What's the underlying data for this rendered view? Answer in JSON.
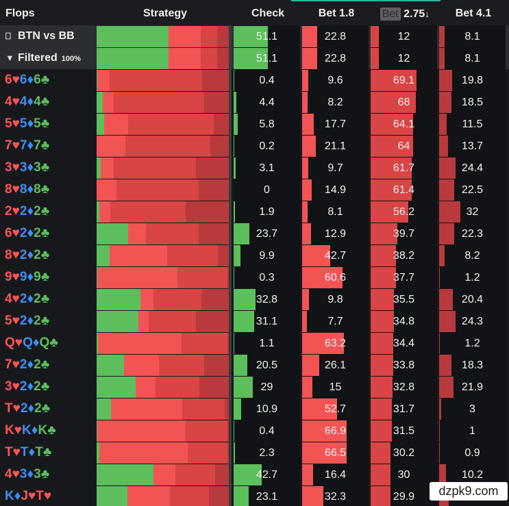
{
  "header": {
    "flops": "Flops",
    "strategy": "Strategy",
    "check": "Check",
    "bet18": "Bet 1.8",
    "bet275_prefix": "Bet",
    "bet275_suffix": "2.75",
    "bet275_sort_icon": "↓",
    "bet41": "Bet 4.1"
  },
  "colors": {
    "check": "#5cbf5c",
    "bet_small": "#f25454",
    "bet_mid": "#d94444",
    "bet_large": "#b83a3d",
    "bet_xl": "#a03337",
    "suit_red": "#ff5555",
    "suit_blue": "#3d8ef5",
    "suit_green": "#5cc05c"
  },
  "summary": [
    {
      "icon": "bookmark-icon",
      "icon_glyph": "⎕",
      "label": "BTN vs BB",
      "badge": "",
      "check": "51.1",
      "bet18": "22.8",
      "bet275": "12",
      "bet41": "8.1",
      "check_n": 51.1,
      "bet18_n": 22.8,
      "bet275_n": 12,
      "bet41_n": 8.1
    },
    {
      "icon": "filter-icon",
      "icon_glyph": "▼",
      "label": "Filtered",
      "badge": "100%",
      "check": "51.1",
      "bet18": "22.8",
      "bet275": "12",
      "bet41": "8.1",
      "check_n": 51.1,
      "bet18_n": 22.8,
      "bet275_n": 12,
      "bet41_n": 8.1
    }
  ],
  "rows": [
    {
      "cards": [
        [
          "6",
          "♥",
          "red"
        ],
        [
          "6",
          "♦",
          "blue"
        ],
        [
          "6",
          "♣",
          "green"
        ]
      ],
      "check": "0.4",
      "bet18": "9.6",
      "bet275": "69.1",
      "bet41": "19.8",
      "check_n": 0.4,
      "bet18_n": 9.6,
      "bet275_n": 69.1,
      "bet41_n": 19.8
    },
    {
      "cards": [
        [
          "4",
          "♥",
          "red"
        ],
        [
          "4",
          "♦",
          "blue"
        ],
        [
          "4",
          "♣",
          "green"
        ]
      ],
      "check": "4.4",
      "bet18": "8.2",
      "bet275": "68",
      "bet41": "18.5",
      "check_n": 4.4,
      "bet18_n": 8.2,
      "bet275_n": 68,
      "bet41_n": 18.5
    },
    {
      "cards": [
        [
          "5",
          "♥",
          "red"
        ],
        [
          "5",
          "♦",
          "blue"
        ],
        [
          "5",
          "♣",
          "green"
        ]
      ],
      "check": "5.8",
      "bet18": "17.7",
      "bet275": "64.1",
      "bet41": "11.5",
      "check_n": 5.8,
      "bet18_n": 17.7,
      "bet275_n": 64.1,
      "bet41_n": 11.5
    },
    {
      "cards": [
        [
          "7",
          "♥",
          "red"
        ],
        [
          "7",
          "♦",
          "blue"
        ],
        [
          "7",
          "♣",
          "green"
        ]
      ],
      "check": "0.2",
      "bet18": "21.1",
      "bet275": "64",
      "bet41": "13.7",
      "check_n": 0.2,
      "bet18_n": 21.1,
      "bet275_n": 64,
      "bet41_n": 13.7
    },
    {
      "cards": [
        [
          "3",
          "♥",
          "red"
        ],
        [
          "3",
          "♦",
          "blue"
        ],
        [
          "3",
          "♣",
          "green"
        ]
      ],
      "check": "3.1",
      "bet18": "9.7",
      "bet275": "61.7",
      "bet41": "24.4",
      "check_n": 3.1,
      "bet18_n": 9.7,
      "bet275_n": 61.7,
      "bet41_n": 24.4
    },
    {
      "cards": [
        [
          "8",
          "♥",
          "red"
        ],
        [
          "8",
          "♦",
          "blue"
        ],
        [
          "8",
          "♣",
          "green"
        ]
      ],
      "check": "0",
      "bet18": "14.9",
      "bet275": "61.4",
      "bet41": "22.5",
      "check_n": 0,
      "bet18_n": 14.9,
      "bet275_n": 61.4,
      "bet41_n": 22.5
    },
    {
      "cards": [
        [
          "2",
          "♥",
          "red"
        ],
        [
          "2",
          "♦",
          "blue"
        ],
        [
          "2",
          "♣",
          "green"
        ]
      ],
      "check": "1.9",
      "bet18": "8.1",
      "bet275": "56.2",
      "bet41": "32",
      "check_n": 1.9,
      "bet18_n": 8.1,
      "bet275_n": 56.2,
      "bet41_n": 32
    },
    {
      "cards": [
        [
          "6",
          "♥",
          "red"
        ],
        [
          "2",
          "♦",
          "blue"
        ],
        [
          "2",
          "♣",
          "green"
        ]
      ],
      "check": "23.7",
      "bet18": "12.9",
      "bet275": "39.7",
      "bet41": "22.3",
      "check_n": 23.7,
      "bet18_n": 12.9,
      "bet275_n": 39.7,
      "bet41_n": 22.3
    },
    {
      "cards": [
        [
          "8",
          "♥",
          "red"
        ],
        [
          "2",
          "♦",
          "blue"
        ],
        [
          "2",
          "♣",
          "green"
        ]
      ],
      "check": "9.9",
      "bet18": "42.7",
      "bet275": "38.2",
      "bet41": "8.2",
      "check_n": 9.9,
      "bet18_n": 42.7,
      "bet275_n": 38.2,
      "bet41_n": 8.2
    },
    {
      "cards": [
        [
          "9",
          "♥",
          "red"
        ],
        [
          "9",
          "♦",
          "blue"
        ],
        [
          "9",
          "♣",
          "green"
        ]
      ],
      "check": "0.3",
      "bet18": "60.6",
      "bet275": "37.7",
      "bet41": "1.2",
      "check_n": 0.3,
      "bet18_n": 60.6,
      "bet275_n": 37.7,
      "bet41_n": 1.2
    },
    {
      "cards": [
        [
          "4",
          "♥",
          "red"
        ],
        [
          "2",
          "♦",
          "blue"
        ],
        [
          "2",
          "♣",
          "green"
        ]
      ],
      "check": "32.8",
      "bet18": "9.8",
      "bet275": "35.5",
      "bet41": "20.4",
      "check_n": 32.8,
      "bet18_n": 9.8,
      "bet275_n": 35.5,
      "bet41_n": 20.4
    },
    {
      "cards": [
        [
          "5",
          "♥",
          "red"
        ],
        [
          "2",
          "♦",
          "blue"
        ],
        [
          "2",
          "♣",
          "green"
        ]
      ],
      "check": "31.1",
      "bet18": "7.7",
      "bet275": "34.8",
      "bet41": "24.3",
      "check_n": 31.1,
      "bet18_n": 7.7,
      "bet275_n": 34.8,
      "bet41_n": 24.3
    },
    {
      "cards": [
        [
          "Q",
          "♥",
          "red"
        ],
        [
          "Q",
          "♦",
          "blue"
        ],
        [
          "Q",
          "♣",
          "green"
        ]
      ],
      "check": "1.1",
      "bet18": "63.2",
      "bet275": "34.4",
      "bet41": "1.2",
      "check_n": 1.1,
      "bet18_n": 63.2,
      "bet275_n": 34.4,
      "bet41_n": 1.2
    },
    {
      "cards": [
        [
          "7",
          "♥",
          "red"
        ],
        [
          "2",
          "♦",
          "blue"
        ],
        [
          "2",
          "♣",
          "green"
        ]
      ],
      "check": "20.5",
      "bet18": "26.1",
      "bet275": "33.8",
      "bet41": "18.3",
      "check_n": 20.5,
      "bet18_n": 26.1,
      "bet275_n": 33.8,
      "bet41_n": 18.3
    },
    {
      "cards": [
        [
          "3",
          "♥",
          "red"
        ],
        [
          "2",
          "♦",
          "blue"
        ],
        [
          "2",
          "♣",
          "green"
        ]
      ],
      "check": "29",
      "bet18": "15",
      "bet275": "32.8",
      "bet41": "21.9",
      "check_n": 29,
      "bet18_n": 15,
      "bet275_n": 32.8,
      "bet41_n": 21.9
    },
    {
      "cards": [
        [
          "T",
          "♥",
          "red"
        ],
        [
          "2",
          "♦",
          "blue"
        ],
        [
          "2",
          "♣",
          "green"
        ]
      ],
      "check": "10.9",
      "bet18": "52.7",
      "bet275": "31.7",
      "bet41": "3",
      "check_n": 10.9,
      "bet18_n": 52.7,
      "bet275_n": 31.7,
      "bet41_n": 3
    },
    {
      "cards": [
        [
          "K",
          "♥",
          "red"
        ],
        [
          "K",
          "♦",
          "blue"
        ],
        [
          "K",
          "♣",
          "green"
        ]
      ],
      "check": "0.4",
      "bet18": "66.9",
      "bet275": "31.5",
      "bet41": "1",
      "check_n": 0.4,
      "bet18_n": 66.9,
      "bet275_n": 31.5,
      "bet41_n": 1
    },
    {
      "cards": [
        [
          "T",
          "♥",
          "red"
        ],
        [
          "T",
          "♦",
          "blue"
        ],
        [
          "T",
          "♣",
          "green"
        ]
      ],
      "check": "2.3",
      "bet18": "66.5",
      "bet275": "30.2",
      "bet41": "0.9",
      "check_n": 2.3,
      "bet18_n": 66.5,
      "bet275_n": 30.2,
      "bet41_n": 0.9
    },
    {
      "cards": [
        [
          "4",
          "♥",
          "red"
        ],
        [
          "3",
          "♦",
          "blue"
        ],
        [
          "3",
          "♣",
          "green"
        ]
      ],
      "check": "42.7",
      "bet18": "16.4",
      "bet275": "30",
      "bet41": "10.2",
      "check_n": 42.7,
      "bet18_n": 16.4,
      "bet275_n": 30,
      "bet41_n": 10.2
    },
    {
      "cards": [
        [
          "K",
          "♦",
          "blue"
        ],
        [
          "J",
          "♥",
          "red"
        ],
        [
          "T",
          "♥",
          "red"
        ]
      ],
      "check": "23.1",
      "bet18": "32.3",
      "bet275": "29.9",
      "bet41": "",
      "check_n": 23.1,
      "bet18_n": 32.3,
      "bet275_n": 29.9,
      "bet41_n": 14.8
    }
  ],
  "watermark": "dzpk9.com"
}
